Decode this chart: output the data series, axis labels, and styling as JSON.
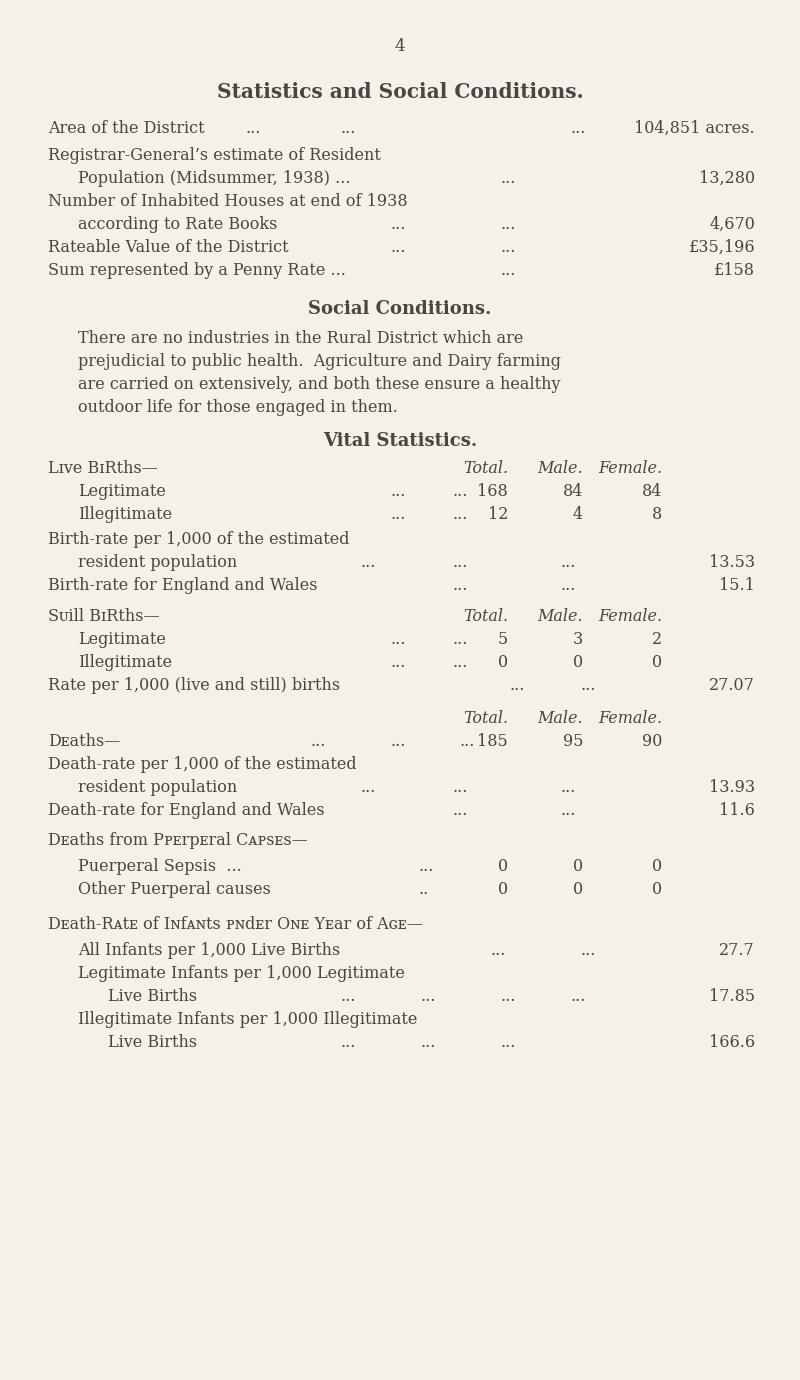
{
  "bg_color": "#f5f0e8",
  "text_color": "#4a4540",
  "page_number": "4",
  "main_title": "Statistics and Social Conditions.",
  "area_value": "104,851 acres.",
  "reg_value": "13,280",
  "houses_value": "4,670",
  "rateable_value": "£35,196",
  "penny_value": "£158",
  "social_title": "Social Conditions.",
  "vital_title": "Vital Statistics.",
  "col_total": "Total.",
  "col_male": "Male.",
  "col_female": "Female.",
  "legit_total": "168",
  "legit_male": "84",
  "legit_female": "84",
  "illeg_total": "12",
  "illeg_male": "4",
  "illeg_female": "8",
  "birthrate_value": "13.53",
  "birthrate_ew_value": "15.1",
  "still_legit_total": "5",
  "still_legit_male": "3",
  "still_legit_female": "2",
  "still_illeg_total": "0",
  "still_illeg_male": "0",
  "still_illeg_female": "0",
  "still_rate_value": "27.07",
  "deaths_total": "185",
  "deaths_male": "95",
  "deaths_female": "90",
  "deathrate_value": "13.93",
  "deathrate_ew_value": "11.6",
  "puerp_sepsis_total": "0",
  "puerp_sepsis_male": "0",
  "puerp_sepsis_female": "0",
  "puerp_other_total": "0",
  "puerp_other_male": "0",
  "puerp_other_female": "0",
  "infant_all_value": "27.7",
  "infant_legit_value": "17.85",
  "infant_illeg_value": "166.6",
  "figw": 8.0,
  "figh": 13.8,
  "dpi": 100
}
